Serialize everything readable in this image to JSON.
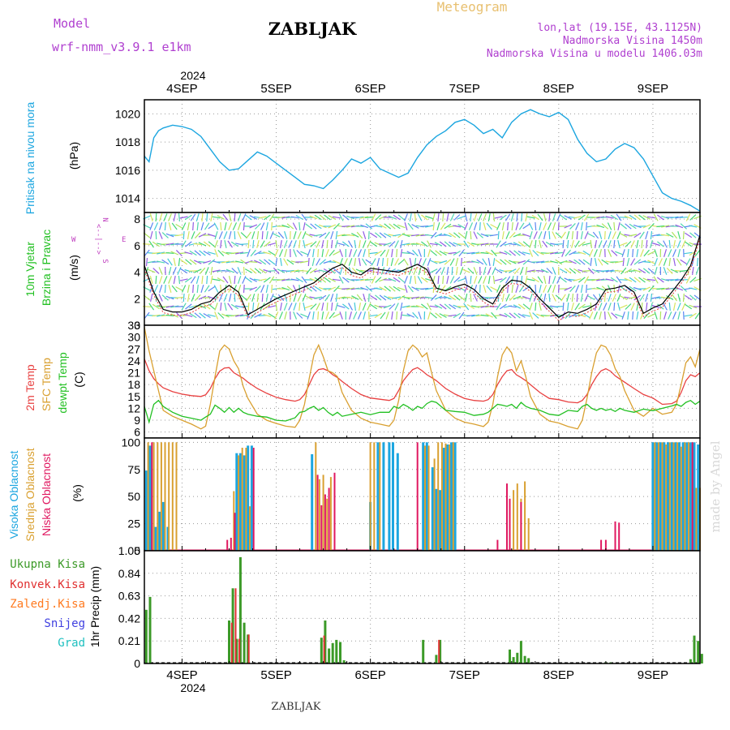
{
  "header": {
    "model_label": "Model",
    "model_name": "wrf-nmm_v3.9.1  e1km",
    "title": "ZABLJAK",
    "meteogram": "Meteogram",
    "coords": "lon,lat (19.15E, 43.1125N)",
    "elevation": "Nadmorska Visina 1450m",
    "model_elevation": "Nadmorska Visina u modelu 1406.03m",
    "footer_title": "ZABLJAK",
    "watermark": "made by Angel"
  },
  "time_axis": {
    "year": "2024",
    "day_labels": [
      "4SEP",
      "5SEP",
      "6SEP",
      "7SEP",
      "8SEP",
      "9SEP"
    ],
    "start_day": 3.6,
    "end_day": 9.5
  },
  "colors": {
    "pressure": "#1ca6e0",
    "wind_speed": "#000000",
    "temp2m": "#e84040",
    "sfc_temp": "#d9a030",
    "dewpoint": "#22c022",
    "high_cloud": "#1ca6e0",
    "mid_cloud": "#d9a030",
    "low_cloud": "#e01860",
    "total_precip": "#3c9a28",
    "conv_precip": "#e03030",
    "frozen_precip": "#ff7a20",
    "snow": "#4040e0",
    "graupel": "#20c0c0",
    "wind_compass": "#c040c0"
  },
  "panel_labels": {
    "pressure": [
      "Pritisak na nivou mora",
      "(hPa)"
    ],
    "wind": [
      "10m Vjetar",
      "Brzina i Pravac",
      "(m/s)"
    ],
    "wind_compass": [
      "N",
      "<--|-->",
      "W",
      "E",
      "S"
    ],
    "temp": [
      "2m Temp",
      "SFC Temp",
      "dewpt Temp",
      "(C)"
    ],
    "cloud": [
      "Visoka Oblacnost",
      "Srednja Oblacnost",
      "Niska Oblacnost",
      "(%)"
    ],
    "precip": [
      "Ukupna Kisa",
      "Konvek.Kisa",
      "Zaledj.Kisa",
      "Snijeg",
      "Grad",
      "1hr Precip (mm)"
    ]
  },
  "chart_data": [
    {
      "type": "line",
      "ylabel": "Pritisak na nivou mora (hPa)",
      "ylim": [
        1013,
        1021
      ],
      "yticks": [
        1014,
        1016,
        1018,
        1020
      ],
      "grid": true,
      "x": [
        3.6,
        3.65,
        3.7,
        3.75,
        3.8,
        3.9,
        4.0,
        4.1,
        4.2,
        4.3,
        4.4,
        4.5,
        4.6,
        4.7,
        4.8,
        4.9,
        5.0,
        5.1,
        5.2,
        5.3,
        5.4,
        5.5,
        5.6,
        5.7,
        5.8,
        5.9,
        6.0,
        6.1,
        6.2,
        6.3,
        6.4,
        6.5,
        6.6,
        6.7,
        6.8,
        6.9,
        7.0,
        7.1,
        7.2,
        7.3,
        7.4,
        7.5,
        7.6,
        7.7,
        7.8,
        7.9,
        8.0,
        8.1,
        8.2,
        8.3,
        8.4,
        8.5,
        8.6,
        8.7,
        8.8,
        8.9,
        9.0,
        9.1,
        9.2,
        9.3,
        9.4,
        9.5
      ],
      "series": [
        {
          "name": "Pritisak na nivou mora",
          "values": [
            1017.0,
            1016.6,
            1018.3,
            1018.8,
            1019.0,
            1019.2,
            1019.1,
            1018.9,
            1018.4,
            1017.5,
            1016.6,
            1016.0,
            1016.1,
            1016.7,
            1017.3,
            1017.0,
            1016.5,
            1016.0,
            1015.5,
            1015.0,
            1014.9,
            1014.7,
            1015.3,
            1016.0,
            1016.8,
            1016.5,
            1016.9,
            1016.1,
            1015.8,
            1015.5,
            1015.8,
            1016.9,
            1017.8,
            1018.4,
            1018.8,
            1019.4,
            1019.6,
            1019.2,
            1018.6,
            1018.9,
            1018.3,
            1019.4,
            1020.0,
            1020.3,
            1020.0,
            1019.8,
            1020.1,
            1019.6,
            1018.2,
            1017.2,
            1016.6,
            1016.8,
            1017.5,
            1017.9,
            1017.6,
            1016.8,
            1015.6,
            1014.4,
            1014.0,
            1013.8,
            1013.5,
            1013.1
          ]
        }
      ]
    },
    {
      "type": "line",
      "ylabel": "10m Vjetar Brzina i Pravac (m/s)",
      "ylim": [
        0,
        8.5
      ],
      "yticks": [
        0,
        2,
        4,
        6,
        8
      ],
      "grid": true,
      "x": [
        3.6,
        3.7,
        3.8,
        3.9,
        4.0,
        4.1,
        4.2,
        4.3,
        4.4,
        4.5,
        4.6,
        4.7,
        4.8,
        4.9,
        5.0,
        5.1,
        5.2,
        5.3,
        5.4,
        5.5,
        5.6,
        5.7,
        5.8,
        5.9,
        6.0,
        6.1,
        6.2,
        6.3,
        6.4,
        6.5,
        6.6,
        6.7,
        6.8,
        6.9,
        7.0,
        7.1,
        7.2,
        7.3,
        7.4,
        7.5,
        7.6,
        7.7,
        7.8,
        7.9,
        8.0,
        8.1,
        8.2,
        8.3,
        8.4,
        8.5,
        8.6,
        8.7,
        8.8,
        8.9,
        9.0,
        9.1,
        9.2,
        9.3,
        9.4,
        9.5
      ],
      "series": [
        {
          "name": "Brzina",
          "values": [
            4.5,
            2.5,
            1.2,
            1.0,
            1.0,
            1.2,
            1.6,
            1.8,
            2.5,
            3.0,
            2.5,
            0.8,
            1.2,
            1.6,
            2.0,
            2.3,
            2.6,
            2.9,
            3.2,
            3.8,
            4.3,
            4.6,
            4.0,
            3.8,
            4.3,
            4.2,
            4.1,
            4.0,
            4.3,
            4.6,
            4.2,
            2.8,
            2.6,
            2.9,
            3.1,
            2.7,
            2.0,
            1.6,
            2.8,
            3.4,
            3.3,
            2.8,
            2.0,
            1.3,
            0.6,
            1.0,
            0.9,
            1.2,
            1.6,
            2.7,
            2.8,
            3.0,
            2.5,
            0.9,
            1.3,
            1.6,
            2.5,
            3.4,
            4.5,
            6.8
          ]
        }
      ]
    },
    {
      "type": "line",
      "ylabel": "(C)",
      "ylim": [
        4.5,
        33
      ],
      "yticks": [
        6,
        9,
        12,
        15,
        18,
        21,
        24,
        27,
        30,
        33
      ],
      "grid": true,
      "x": [
        3.6,
        3.65,
        3.7,
        3.75,
        3.8,
        3.9,
        4.0,
        4.1,
        4.2,
        4.25,
        4.3,
        4.35,
        4.4,
        4.45,
        4.5,
        4.55,
        4.6,
        4.65,
        4.7,
        4.8,
        4.9,
        5.0,
        5.1,
        5.2,
        5.25,
        5.3,
        5.35,
        5.4,
        5.45,
        5.5,
        5.55,
        5.6,
        5.65,
        5.7,
        5.8,
        5.9,
        6.0,
        6.1,
        6.2,
        6.25,
        6.3,
        6.35,
        6.4,
        6.45,
        6.5,
        6.55,
        6.6,
        6.65,
        6.7,
        6.8,
        6.9,
        7.0,
        7.1,
        7.2,
        7.25,
        7.3,
        7.35,
        7.4,
        7.45,
        7.5,
        7.55,
        7.6,
        7.65,
        7.7,
        7.8,
        7.9,
        8.0,
        8.1,
        8.2,
        8.25,
        8.3,
        8.35,
        8.4,
        8.45,
        8.5,
        8.55,
        8.6,
        8.65,
        8.7,
        8.8,
        8.9,
        9.0,
        9.1,
        9.2,
        9.25,
        9.3,
        9.35,
        9.4,
        9.45,
        9.5
      ],
      "series": [
        {
          "name": "2m Temp",
          "values": [
            24.5,
            21.5,
            19.5,
            18.2,
            17.2,
            16.2,
            15.6,
            15.2,
            15.0,
            15.4,
            17.0,
            19.5,
            21.4,
            22.2,
            22.3,
            21.0,
            20.3,
            19.6,
            18.6,
            17.0,
            15.8,
            14.8,
            14.2,
            13.8,
            14.2,
            15.5,
            18.0,
            20.5,
            21.8,
            22.0,
            21.5,
            20.5,
            19.8,
            18.8,
            17.0,
            15.5,
            14.6,
            14.3,
            14.0,
            14.5,
            16.5,
            19.0,
            20.5,
            21.8,
            22.3,
            21.5,
            20.5,
            19.8,
            19.0,
            17.0,
            15.6,
            14.5,
            14.0,
            13.8,
            14.2,
            15.5,
            18.0,
            20.0,
            21.5,
            21.8,
            20.5,
            19.8,
            19.0,
            18.0,
            16.0,
            14.5,
            14.2,
            13.6,
            13.4,
            14.0,
            15.5,
            18.0,
            20.0,
            21.5,
            22.0,
            21.4,
            20.2,
            19.4,
            18.6,
            17.0,
            15.5,
            14.6,
            13.0,
            13.2,
            13.8,
            16.0,
            19.0,
            20.5,
            20.0,
            21.0
          ]
        },
        {
          "name": "SFC Temp",
          "values": [
            32.5,
            26.5,
            21.5,
            16.5,
            11.5,
            10.0,
            9.0,
            8.0,
            6.8,
            7.5,
            13.0,
            20.0,
            26.5,
            28.0,
            27.0,
            24.0,
            22.0,
            17.5,
            14.5,
            10.5,
            9.0,
            8.2,
            7.5,
            7.2,
            9.0,
            13.0,
            19.5,
            25.5,
            28.0,
            25.0,
            21.5,
            21.0,
            20.0,
            16.0,
            11.5,
            9.5,
            8.5,
            8.0,
            7.5,
            9.0,
            14.0,
            21.5,
            26.5,
            28.0,
            27.0,
            25.0,
            26.0,
            21.0,
            16.5,
            11.5,
            9.5,
            8.5,
            8.0,
            7.4,
            8.5,
            13.0,
            20.0,
            25.5,
            27.5,
            26.0,
            21.5,
            24.0,
            20.0,
            15.0,
            10.5,
            8.8,
            8.3,
            7.4,
            6.8,
            9.0,
            14.5,
            21.0,
            26.0,
            28.0,
            27.5,
            25.5,
            22.0,
            20.0,
            16.5,
            11.5,
            10.0,
            12.0,
            10.5,
            11.0,
            13.0,
            18.0,
            23.5,
            25.0,
            22.5,
            27.0
          ]
        },
        {
          "name": "dewpt Temp",
          "values": [
            12.5,
            8.5,
            13.0,
            14.0,
            12.5,
            11.0,
            10.0,
            9.5,
            9.0,
            9.8,
            10.5,
            12.8,
            12.0,
            11.0,
            12.2,
            11.0,
            12.0,
            11.0,
            10.5,
            10.0,
            9.8,
            9.0,
            8.8,
            9.6,
            11.0,
            11.2,
            12.0,
            12.5,
            11.5,
            12.2,
            11.0,
            10.2,
            11.0,
            10.0,
            10.5,
            11.0,
            10.4,
            11.0,
            11.0,
            12.5,
            12.0,
            13.0,
            12.4,
            11.5,
            12.5,
            12.0,
            13.2,
            13.8,
            13.5,
            11.5,
            11.2,
            11.0,
            10.2,
            10.5,
            11.0,
            12.0,
            13.0,
            12.8,
            12.5,
            13.0,
            12.0,
            13.5,
            12.5,
            12.0,
            11.5,
            10.5,
            10.2,
            11.5,
            11.2,
            12.5,
            13.0,
            12.0,
            11.5,
            12.0,
            11.5,
            11.8,
            11.2,
            12.0,
            11.5,
            11.0,
            11.8,
            11.4,
            12.0,
            12.6,
            13.0,
            12.5,
            13.5,
            14.0,
            13.0,
            13.8
          ]
        }
      ]
    },
    {
      "type": "bar",
      "ylabel": "(%)",
      "ylim": [
        0,
        104
      ],
      "yticks": [
        0,
        25,
        50,
        75,
        100
      ],
      "grid": true,
      "series": [
        {
          "name": "Visoka Oblacnost",
          "x": [
            3.62,
            3.66,
            3.72,
            3.76,
            3.8,
            3.85,
            4.58,
            4.62,
            4.66,
            4.7,
            4.74,
            5.38,
            6.0,
            6.08,
            6.14,
            6.2,
            6.24,
            6.29,
            6.56,
            6.6,
            6.66,
            6.7,
            6.74,
            6.78,
            6.82,
            6.86,
            6.9,
            8.0,
            9.0,
            9.04,
            9.08,
            9.12,
            9.16,
            9.2,
            9.24,
            9.28,
            9.32,
            9.36,
            9.4,
            9.44,
            9.48
          ],
          "values": [
            74,
            97,
            22,
            36,
            45,
            22,
            90,
            90,
            88,
            97,
            97,
            89,
            45,
            100,
            100,
            100,
            100,
            90,
            100,
            100,
            77,
            57,
            56,
            95,
            98,
            100,
            100,
            0,
            100,
            100,
            100,
            100,
            100,
            100,
            100,
            100,
            100,
            100,
            100,
            100,
            98
          ]
        },
        {
          "name": "Srednja Oblacnost",
          "x": [
            3.64,
            3.7,
            3.74,
            3.78,
            3.82,
            3.86,
            3.9,
            3.94,
            4.55,
            4.6,
            4.64,
            4.68,
            4.72,
            5.42,
            5.46,
            5.5,
            5.54,
            5.58,
            5.62,
            6.0,
            6.04,
            6.1,
            6.58,
            6.62,
            6.68,
            6.72,
            6.76,
            6.8,
            6.84,
            6.88,
            7.52,
            7.56,
            7.6,
            7.64,
            7.68,
            9.02,
            9.06,
            9.1,
            9.14,
            9.18,
            9.22,
            9.26,
            9.3,
            9.34,
            9.38,
            9.46,
            9.5
          ],
          "values": [
            100,
            100,
            100,
            100,
            100,
            100,
            100,
            100,
            55,
            88,
            95,
            95,
            41,
            100,
            66,
            70,
            48,
            68,
            60,
            100,
            100,
            100,
            97,
            97,
            85,
            100,
            100,
            99,
            98,
            100,
            56,
            62,
            48,
            64,
            30,
            100,
            100,
            100,
            98,
            100,
            100,
            100,
            96,
            100,
            100,
            58,
            58
          ]
        },
        {
          "name": "Niska Oblacnost",
          "x": [
            3.68,
            4.48,
            4.52,
            4.56,
            4.76,
            5.44,
            5.48,
            5.52,
            5.56,
            5.62,
            6.5,
            7.35,
            7.45,
            7.48,
            7.6,
            8.45,
            8.5,
            8.6,
            8.64,
            9.42
          ],
          "values": [
            100,
            10,
            12,
            35,
            95,
            70,
            42,
            52,
            58,
            72,
            100,
            10,
            62,
            48,
            45,
            10,
            10,
            27,
            26,
            100
          ]
        }
      ]
    },
    {
      "type": "bar",
      "ylabel": "1hr Precip (mm)",
      "ylim": [
        0,
        1.05
      ],
      "yticks": [
        0,
        0.21,
        0.42,
        0.63,
        0.84,
        1.05
      ],
      "grid": true,
      "series": [
        {
          "name": "Ukupna Kisa",
          "x": [
            3.62,
            3.66,
            4.5,
            4.54,
            4.58,
            4.62,
            4.66,
            4.7,
            5.48,
            5.52,
            5.56,
            5.6,
            5.64,
            5.68,
            5.72,
            6.56,
            6.7,
            6.74,
            7.48,
            7.52,
            7.56,
            7.6,
            7.64,
            7.68,
            8.5,
            8.55,
            9.4,
            9.44,
            9.48,
            9.52
          ],
          "values": [
            0.5,
            0.62,
            0.4,
            0.7,
            0.23,
            0.99,
            0.38,
            0.27,
            0.24,
            0.4,
            0.14,
            0.19,
            0.22,
            0.2,
            0.03,
            0.22,
            0.08,
            0.22,
            0.13,
            0.06,
            0.1,
            0.21,
            0.07,
            0.05,
            0.01,
            0.01,
            0.04,
            0.26,
            0.21,
            0.09
          ]
        },
        {
          "name": "Konvek.Kisa",
          "x": [
            4.52,
            4.56,
            4.6,
            4.7,
            5.5,
            6.72
          ],
          "values": [
            0.38,
            0.7,
            0.23,
            0.27,
            0.26,
            0.22
          ]
        }
      ]
    }
  ]
}
